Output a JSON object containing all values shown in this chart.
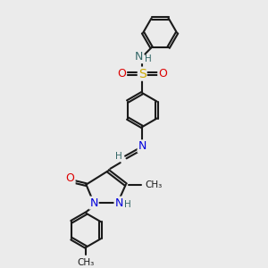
{
  "bg_color": "#ebebeb",
  "bond_color": "#1a1a1a",
  "bond_width": 1.5,
  "atom_colors": {
    "N": "#0000dd",
    "O": "#dd0000",
    "S": "#ccaa00",
    "H": "#336666",
    "C_label": "#1a1a1a"
  },
  "font_size_atom": 9,
  "font_size_small": 7,
  "font_size_methyl": 7.5
}
